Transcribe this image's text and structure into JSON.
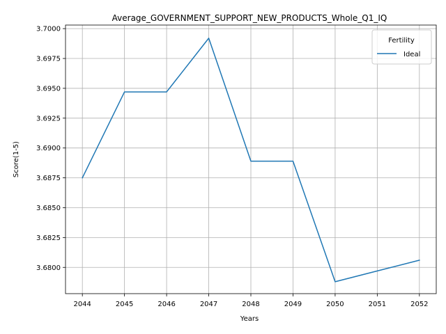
{
  "chart_data": {
    "type": "line",
    "title": "Average_GOVERNMENT_SUPPORT_NEW_PRODUCTS_Whole_Q1_IQ",
    "xlabel": "Years",
    "ylabel": "Score(1-5)",
    "x": [
      2044,
      2045,
      2046,
      2047,
      2048,
      2049,
      2050,
      2051,
      2052
    ],
    "x_tick_labels": [
      "2044",
      "2045",
      "2046",
      "2047",
      "2048",
      "2049",
      "2050",
      "2051",
      "2052"
    ],
    "y_ticks": [
      3.68,
      3.6825,
      3.685,
      3.6875,
      3.69,
      3.6925,
      3.695,
      3.6975,
      3.7
    ],
    "y_tick_labels": [
      "3.6800",
      "3.6825",
      "3.6850",
      "3.6875",
      "3.6900",
      "3.6925",
      "3.6950",
      "3.6975",
      "3.7000"
    ],
    "xlim": [
      2043.6,
      2052.4
    ],
    "ylim": [
      3.6778,
      3.7003
    ],
    "grid": true,
    "legend": {
      "title": "Fertility",
      "placement": "top-right"
    },
    "series": [
      {
        "name": "Ideal",
        "color": "#1f77b4",
        "values": [
          3.6875,
          3.6947,
          3.6947,
          3.6992,
          3.6889,
          3.6889,
          3.6788,
          3.6797,
          3.6806
        ]
      }
    ]
  }
}
